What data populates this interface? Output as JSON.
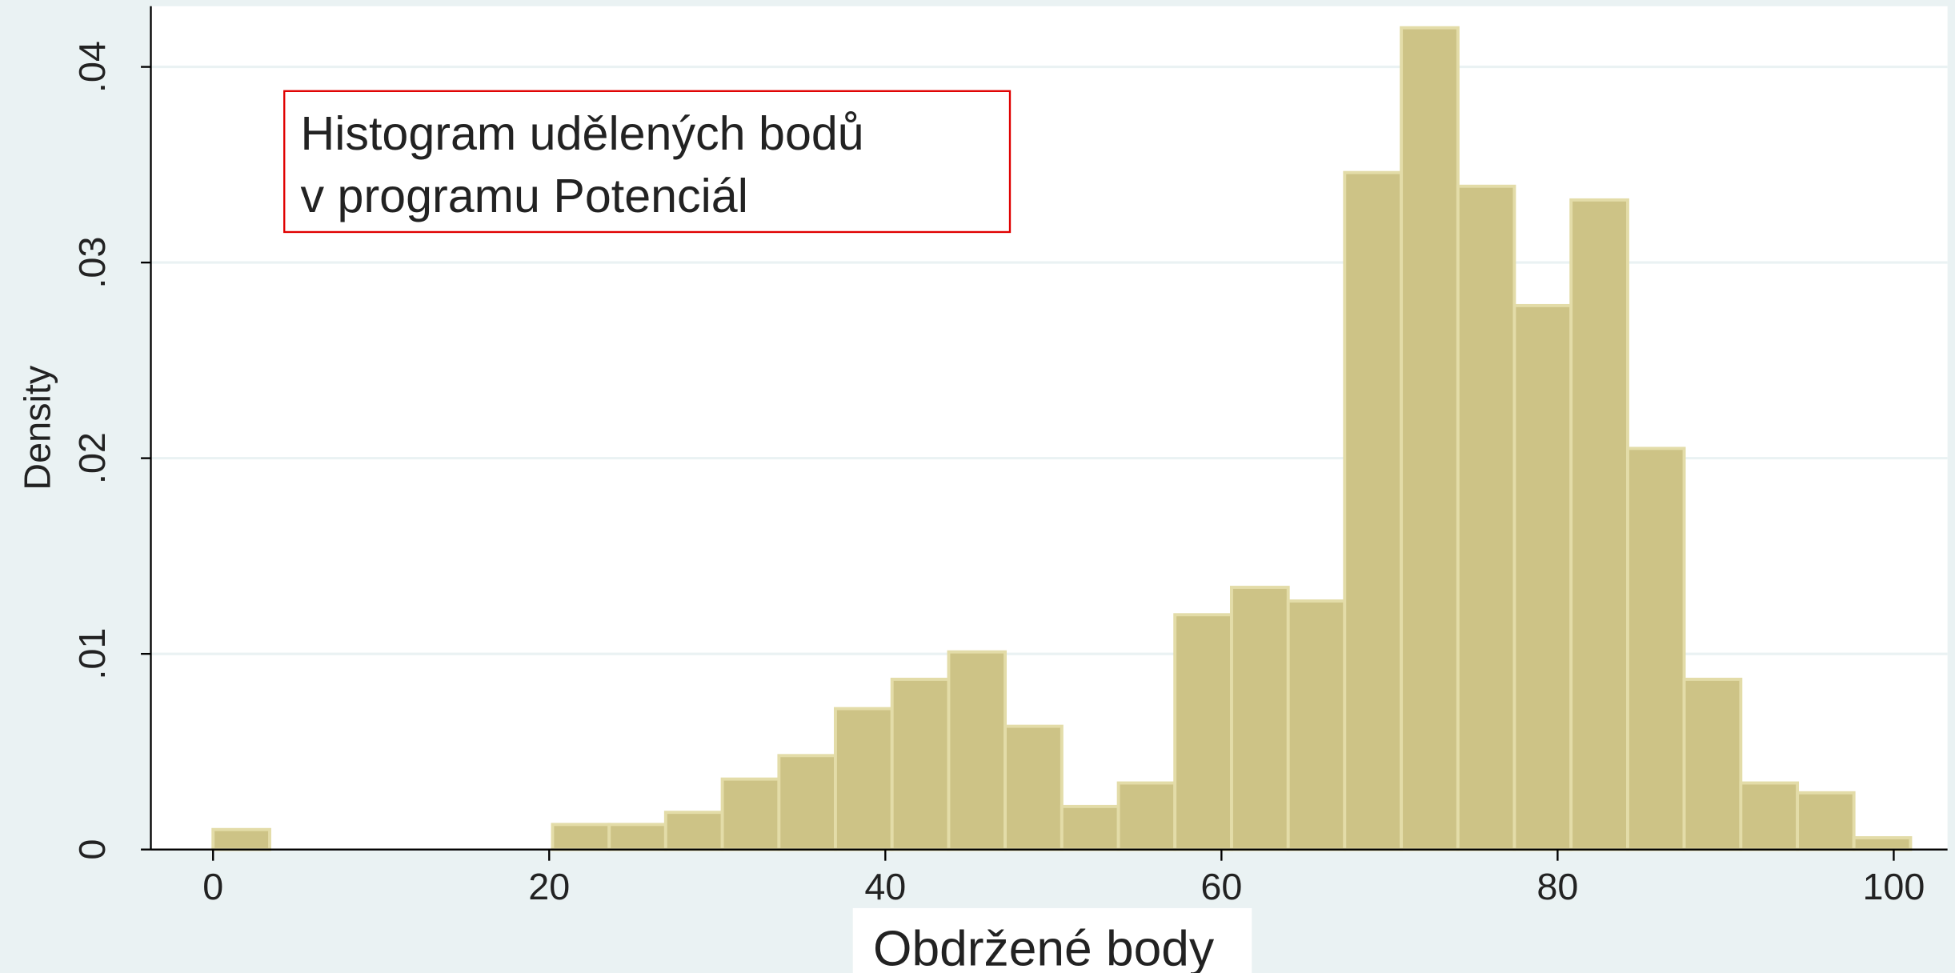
{
  "chart_data": {
    "type": "histogram",
    "annotation": [
      "Histogram udělených bodů",
      "v programu Potenciál"
    ],
    "xlabel": "Obdržené body",
    "ylabel": "Density",
    "bins": [
      0,
      3.37,
      6.73,
      10.1,
      13.47,
      16.83,
      20.2,
      23.57,
      26.93,
      30.3,
      33.67,
      37.03,
      40.4,
      43.77,
      47.13,
      50.5,
      53.87,
      57.23,
      60.6,
      63.97,
      67.33,
      70.7,
      74.07,
      77.43,
      80.8,
      84.17,
      87.53,
      90.9,
      94.27,
      97.63,
      101
    ],
    "values": [
      0.00102,
      0,
      0,
      0,
      0,
      0,
      0.00128,
      0.00128,
      0.0019,
      0.0036,
      0.0048,
      0.0072,
      0.0087,
      0.0101,
      0.0063,
      0.0022,
      0.0034,
      0.012,
      0.0134,
      0.0127,
      0.0346,
      0.042,
      0.0339,
      0.0278,
      0.0332,
      0.0205,
      0.0087,
      0.0034,
      0.0029,
      0.0006
    ],
    "color": "#cdc386",
    "xlim": [
      -3.7,
      103.2
    ],
    "ylim": [
      0,
      0.0431
    ],
    "xticks": [
      0,
      20,
      40,
      60,
      80,
      100
    ],
    "yticks": [
      0,
      {
        "value": 0.01,
        "label": ".01"
      },
      {
        "value": 0.02,
        "label": ".02"
      },
      {
        "value": 0.03,
        "label": ".03"
      },
      {
        "value": 0.04,
        "label": ".04"
      }
    ],
    "grid": true
  }
}
